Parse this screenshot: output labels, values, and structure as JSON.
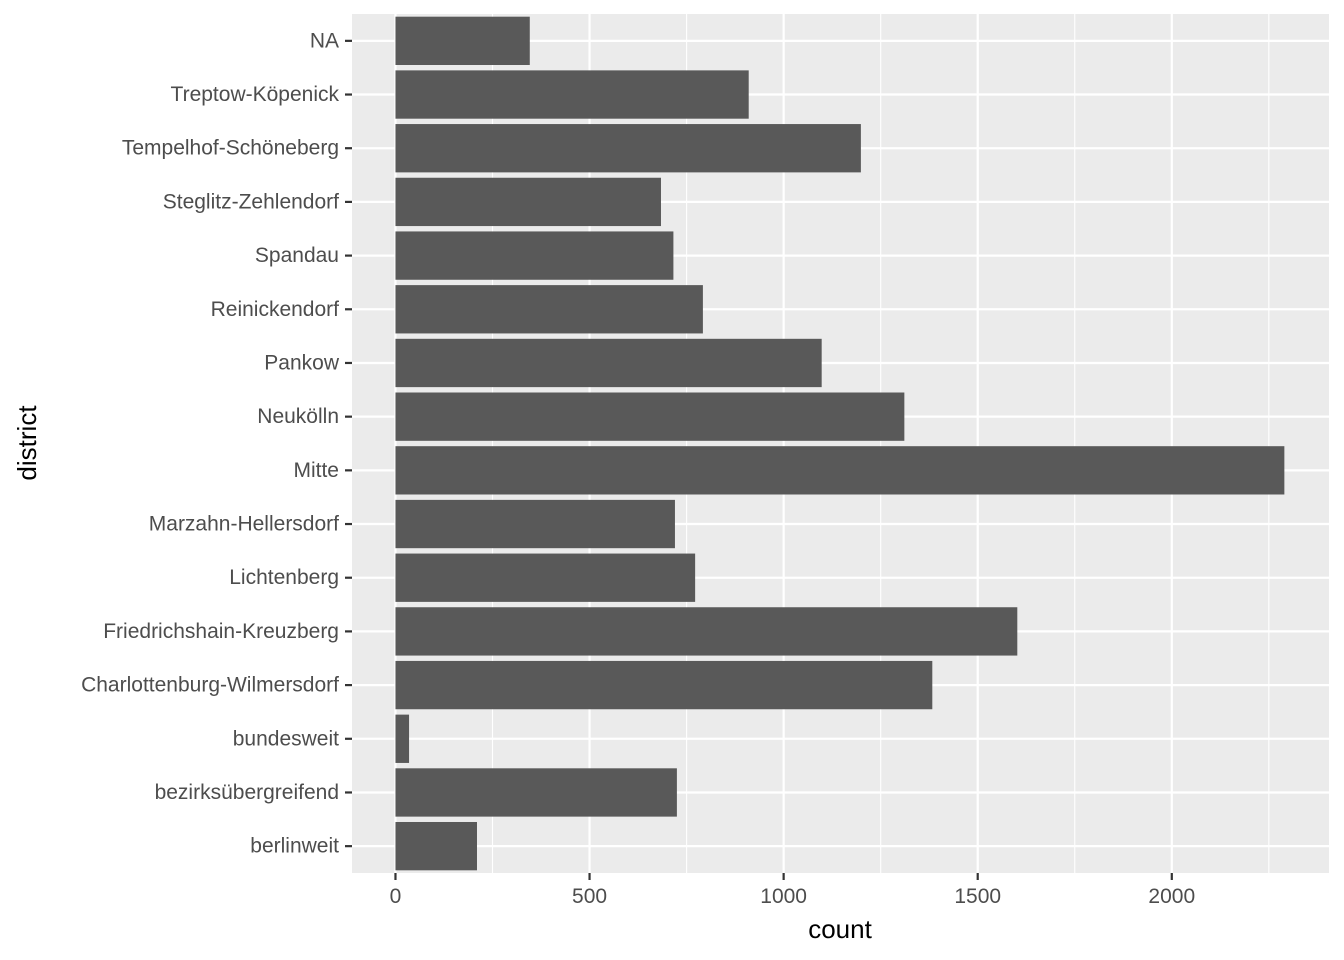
{
  "chart_data": {
    "type": "bar",
    "orientation": "horizontal",
    "xlabel": "count",
    "ylabel": "district",
    "categories": [
      "berlinweit",
      "bezirksübergreifend",
      "bundesweit",
      "Charlottenburg-Wilmersdorf",
      "Friedrichshain-Kreuzberg",
      "Lichtenberg",
      "Marzahn-Hellersdorf",
      "Mitte",
      "Neukölln",
      "Pankow",
      "Reinickendorf",
      "Spandau",
      "Steglitz-Zehlendorf",
      "Tempelhof-Schöneberg",
      "Treptow-Köpenick",
      "NA"
    ],
    "values": [
      210,
      725,
      35,
      1383,
      1602,
      772,
      720,
      2290,
      1311,
      1098,
      792,
      716,
      684,
      1199,
      910,
      346
    ],
    "xticks": [
      0,
      500,
      1000,
      1500,
      2000
    ],
    "xlim": [
      -112,
      2405
    ],
    "grid": true,
    "colors": {
      "panel_background": "#ebebeb",
      "grid_major": "#ffffff",
      "bar_fill": "#595959",
      "tick_text": "#4d4d4d",
      "tick_mark": "#333333",
      "title_text": "#000000"
    }
  }
}
